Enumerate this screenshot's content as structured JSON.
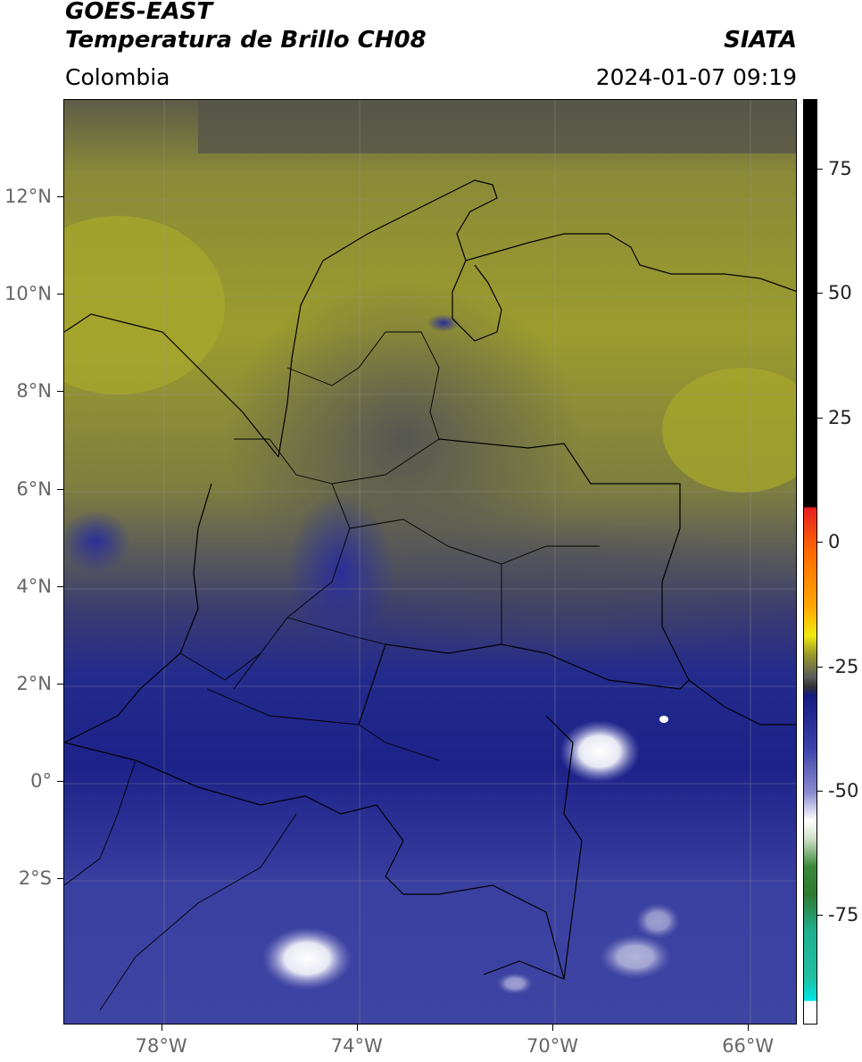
{
  "header": {
    "satellite": "GOES-EAST",
    "product": "Temperatura de Brillo CH08",
    "region": "Colombia",
    "agency": "SIATA",
    "datetime": "2024-01-07 09:19"
  },
  "map": {
    "lat_ticks": [
      "12°N",
      "10°N",
      "8°N",
      "6°N",
      "4°N",
      "2°N",
      "0°",
      "2°S"
    ],
    "lon_ticks": [
      "78°W",
      "74°W",
      "70°W",
      "66°W"
    ],
    "lat_values": [
      12,
      10,
      8,
      6,
      4,
      2,
      0,
      -2
    ],
    "lon_values": [
      -78,
      -74,
      -70,
      -66
    ],
    "extent": {
      "lon_min": -80,
      "lon_max": -65,
      "lat_min": -5,
      "lat_max": 14
    }
  },
  "colorbar": {
    "tick_labels": [
      "75",
      "50",
      "25",
      "0",
      "-25",
      "-50",
      "-75"
    ],
    "tick_values": [
      75,
      50,
      25,
      0,
      -25,
      -50,
      -75
    ],
    "range": [
      -97,
      89
    ],
    "colors": {
      "black": "#000000",
      "red": "#e62020",
      "orange": "#ff9a00",
      "yellow": "#f0ea10",
      "olive": "#9a9a2a",
      "gray": "#555555",
      "navy": "#1a1f8c",
      "lavender": "#b8b8e0",
      "white": "#ffffff",
      "green": "#3a8a3a",
      "teal": "#20c0a0",
      "cyan": "#00e6e6"
    }
  }
}
